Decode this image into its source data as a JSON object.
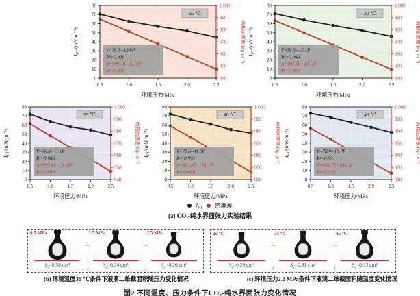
{
  "colors": {
    "accent_red": "#c0392f",
    "black_series": "#1f1f1f",
    "spine": "#2e2e2e",
    "grid": "#ffffff",
    "annotation_bg": "#a2a2a2",
    "temp_box_bg": "#c9c9c9",
    "blue_area_label": "#35509e",
    "orange_arrow": "#de8a33"
  },
  "chart_axes": {
    "xlabel": "环境压力/MPa",
    "xticks": [
      0.5,
      1.0,
      1.5,
      2.0,
      2.5
    ],
    "ylabel_left_main": "I",
    "ylabel_left_sub": "FT",
    "ylabel_left_rest": "/(mN·m⁻¹)",
    "ylabel_right": "两相密度差/(kg·m⁻³)",
    "ylim_left": [
      0,
      80
    ],
    "ylim_right": [
      940,
      1000
    ],
    "ytick_step": 10,
    "ytick_top_right_label": "1 000",
    "grid": "on",
    "legend_position": "below"
  },
  "chart_data": [
    {
      "name": "chart-25c",
      "type": "line",
      "temperature_label": "25 ℃",
      "bg_color": "#fbe3da",
      "x": [
        0.5,
        1.0,
        1.5,
        2.0,
        2.5
      ],
      "series": [
        {
          "name": "IFT",
          "axis": "left",
          "values": [
            70.5,
            62.5,
            57.0,
            52.0,
            45.0
          ]
        },
        {
          "name": "密度差",
          "axis": "right",
          "values": [
            988.8,
            978.5,
            968.1,
            957.8,
            947.4
          ]
        }
      ],
      "annotation": {
        "line1": "Y=76.3−12.6P",
        "line2": "R²=0.999",
        "line3": "A=999.18−20.71P",
        "line4": "R²=0.990"
      }
    },
    {
      "name": "chart-30c",
      "type": "line",
      "temperature_label": "30 ℃",
      "bg_color": "#e7f2e3",
      "x": [
        0.5,
        1.0,
        1.5,
        2.0,
        2.5
      ],
      "series": [
        {
          "name": "IFT",
          "axis": "left",
          "values": [
            71.0,
            64.0,
            58.0,
            52.5,
            46.0
          ]
        },
        {
          "name": "密度差",
          "axis": "right",
          "values": [
            987.5,
            977.5,
            967.4,
            957.3,
            947.3
          ]
        }
      ],
      "annotation": {
        "line1": "Y=76.3−12.1P",
        "line2": "R²=0.999",
        "line3": "A=997.59−20.13P",
        "line4": "R²=0.999"
      }
    },
    {
      "name": "chart-35c",
      "type": "line",
      "temperature_label": "35 ℃",
      "bg_color": "#eae5f2",
      "x": [
        0.5,
        1.0,
        1.5,
        2.0,
        2.5
      ],
      "series": [
        {
          "name": "IFT",
          "axis": "left",
          "values": [
            72.0,
            64.0,
            58.0,
            54.5,
            49.0
          ]
        },
        {
          "name": "密度差",
          "axis": "right",
          "values": [
            986.0,
            976.2,
            966.4,
            956.6,
            946.8
          ]
        }
      ],
      "annotation": {
        "line1": "Y=76.3−11.1P",
        "line2": "R²=0.986",
        "line3": "A=995.81−19.59P",
        "line4": "R²=0.999"
      }
    },
    {
      "name": "chart-40c",
      "type": "line",
      "temperature_label": "40 ℃",
      "bg_color": "#f6e3c3",
      "x": [
        0.5,
        1.0,
        1.5,
        2.0,
        2.5
      ],
      "series": [
        {
          "name": "IFT",
          "axis": "left",
          "values": [
            72.0,
            66.0,
            61.0,
            55.0,
            51.0
          ]
        },
        {
          "name": "密度差",
          "axis": "right",
          "values": [
            984.3,
            974.8,
            965.3,
            955.8,
            946.3
          ]
        }
      ],
      "annotation": {
        "line1": "Y=77.6−11.0P",
        "line2": "R²=0.993",
        "line3": "A=993.85−19.01P",
        "line4": "R²=0.999"
      }
    },
    {
      "name": "chart-45c",
      "type": "line",
      "temperature_label": "45 ℃",
      "bg_color": "#e2e8f0",
      "x": [
        0.5,
        1.0,
        1.5,
        2.0,
        2.5
      ],
      "series": [
        {
          "name": "IFT",
          "axis": "left",
          "values": [
            73.0,
            68.5,
            63.0,
            57.5,
            52.0
          ]
        },
        {
          "name": "密度差",
          "axis": "right",
          "values": [
            982.4,
            973.1,
            963.7,
            954.4,
            945.2
          ]
        }
      ],
      "annotation": {
        "line1": "Y=78.9−10.7P",
        "line2": "R²=0.991",
        "line3": "A=991.72−18.62P",
        "line4": "R²=0.999"
      }
    }
  ],
  "figure": {
    "legend": {
      "ift_main": "I",
      "ift_sub": "FT",
      "density_label": "密度差"
    },
    "caption_a": "(a) CO₂-纯水界面张力实验结果",
    "caption_b": "(b) 环境温度30 ℃条件下液滴二维截面积随压力变化情况",
    "caption_c": "(c) 环境压力2.0 MPa条件下液滴二维截面积随温度变化情况",
    "caption_main": "图2  不同温度、压力条件下CO₂-纯水界面张力变化情况"
  },
  "droplet_panels": [
    {
      "name": "panel-b-pressure-series",
      "trend_arrow": "↓",
      "items": [
        {
          "condition": "0.5 MPa",
          "s_main": "S",
          "s_sub": "y",
          "area_value": "0.38 cm²",
          "scale": 1.0
        },
        {
          "condition": "1.5 MPa",
          "s_main": "S",
          "s_sub": "y",
          "area_value": "0.34 cm²",
          "scale": 0.94
        },
        {
          "condition": "2.5 MPa",
          "s_main": "S",
          "s_sub": "y",
          "area_value": "0.26 cm²",
          "scale": 0.83
        }
      ]
    },
    {
      "name": "panel-c-temperature-series",
      "trend_arrow": "↑",
      "items": [
        {
          "condition": "25 ℃",
          "s_main": "S",
          "s_sub": "y",
          "area_value": "0.29 cm²",
          "scale": 0.87
        },
        {
          "condition": "35 ℃",
          "s_main": "S",
          "s_sub": "y",
          "area_value": "0.31 cm²",
          "scale": 0.92
        },
        {
          "condition": "45 ℃",
          "s_main": "S",
          "s_sub": "y",
          "area_value": "0.33 cm²",
          "scale": 0.97
        }
      ]
    }
  ]
}
